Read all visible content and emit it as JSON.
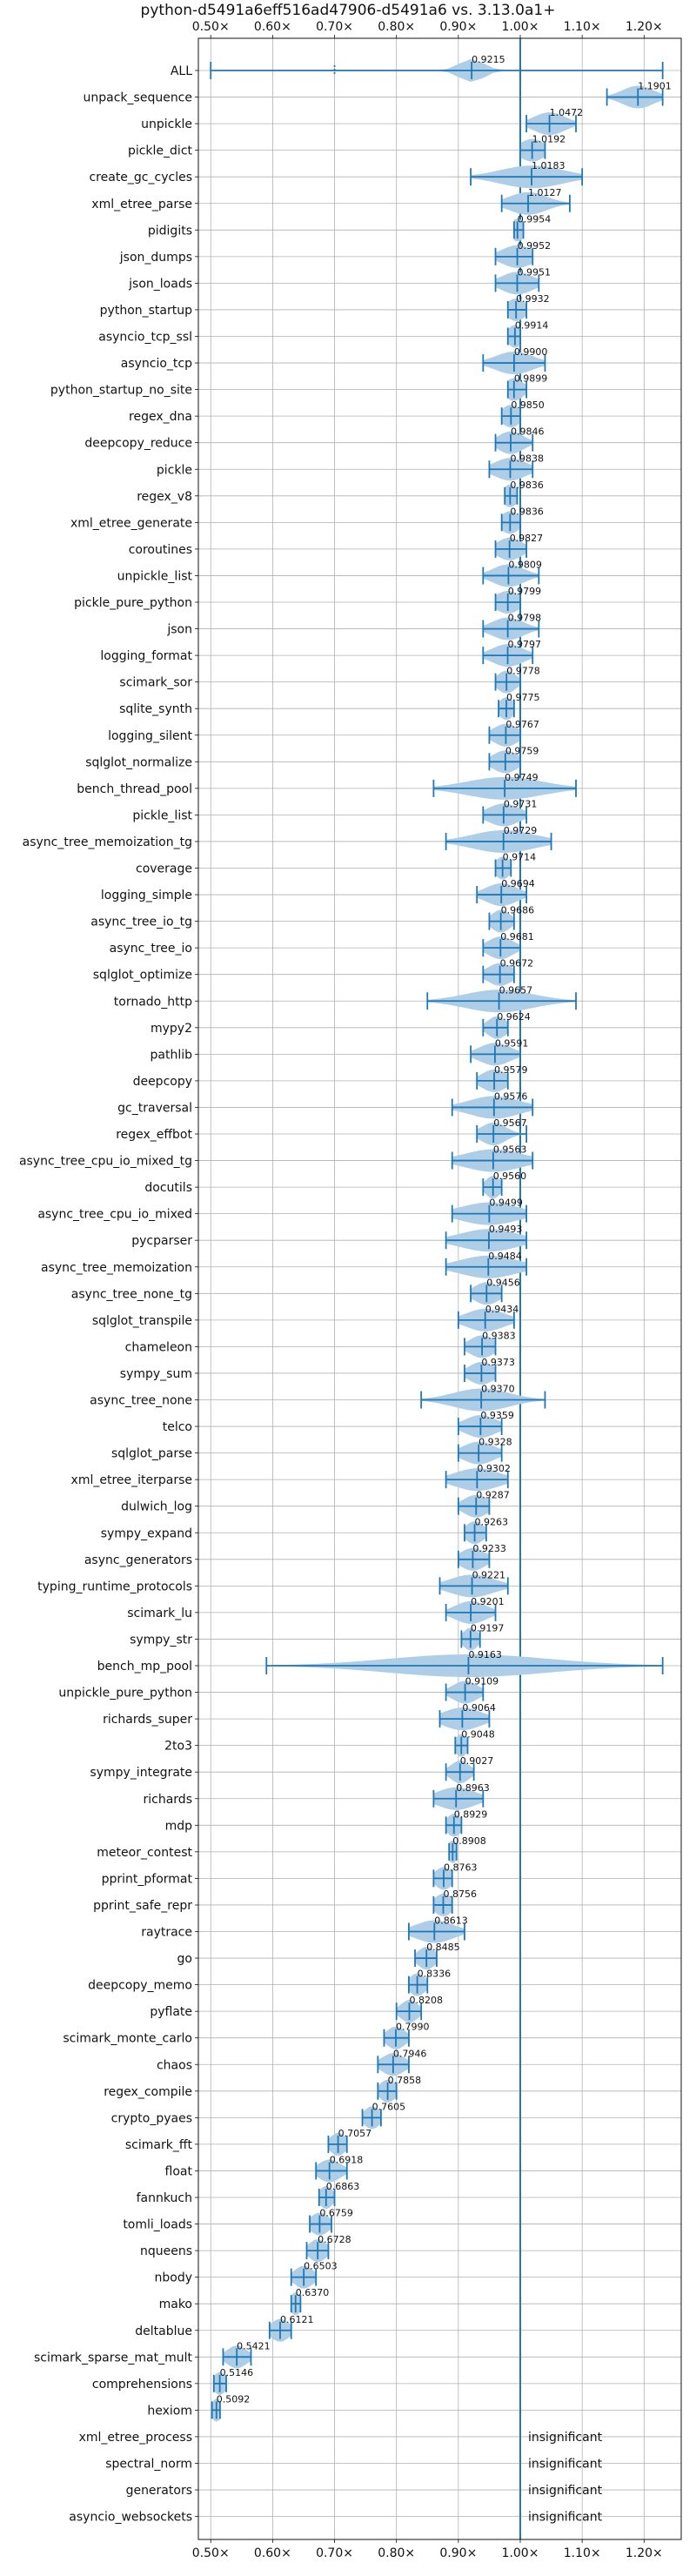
{
  "chart_data": {
    "type": "violin",
    "title": "python-d5491a6eff516ad47906-d5491a6 vs. 3.13.0a1+",
    "xlim": [
      0.48,
      1.26
    ],
    "xticks": [
      0.5,
      0.6,
      0.7,
      0.8,
      0.9,
      1.0,
      1.1,
      1.2
    ],
    "xtick_labels": [
      "0.50×",
      "0.60×",
      "0.70×",
      "0.80×",
      "0.90×",
      "1.00×",
      "1.10×",
      "1.20×"
    ],
    "reference_line": 1.0,
    "grid": true,
    "color": "#1f77b4",
    "violin_color": "#aecde7",
    "insignificant_text": "insignificant",
    "benchmarks": [
      {
        "name": "ALL",
        "value": 0.9215,
        "label": "0.9215",
        "lo": 0.5,
        "hi": 1.23,
        "spread": 0.02,
        "dots": true
      },
      {
        "name": "unpack_sequence",
        "value": 1.1901,
        "label": "1.1901",
        "lo": 1.14,
        "hi": 1.23,
        "spread": 0.025
      },
      {
        "name": "unpickle",
        "value": 1.0472,
        "label": "1.0472",
        "lo": 1.01,
        "hi": 1.09,
        "spread": 0.025
      },
      {
        "name": "pickle_dict",
        "value": 1.0192,
        "label": "1.0192",
        "lo": 1.0,
        "hi": 1.04,
        "spread": 0.02
      },
      {
        "name": "create_gc_cycles",
        "value": 1.0183,
        "label": "1.0183",
        "lo": 0.92,
        "hi": 1.1,
        "spread": 0.05
      },
      {
        "name": "xml_etree_parse",
        "value": 1.0127,
        "label": "1.0127",
        "lo": 0.97,
        "hi": 1.08,
        "spread": 0.03
      },
      {
        "name": "pidigits",
        "value": 0.9954,
        "label": "0.9954",
        "lo": 0.99,
        "hi": 1.005,
        "spread": 0.012
      },
      {
        "name": "json_dumps",
        "value": 0.9952,
        "label": "0.9952",
        "lo": 0.96,
        "hi": 1.02,
        "spread": 0.025
      },
      {
        "name": "json_loads",
        "value": 0.9951,
        "label": "0.9951",
        "lo": 0.96,
        "hi": 1.03,
        "spread": 0.025
      },
      {
        "name": "python_startup",
        "value": 0.9932,
        "label": "0.9932",
        "lo": 0.98,
        "hi": 1.01,
        "spread": 0.015
      },
      {
        "name": "asyncio_tcp_ssl",
        "value": 0.9914,
        "label": "0.9914",
        "lo": 0.98,
        "hi": 1.0,
        "spread": 0.012
      },
      {
        "name": "asyncio_tcp",
        "value": 0.99,
        "label": "0.9900",
        "lo": 0.94,
        "hi": 1.04,
        "spread": 0.03
      },
      {
        "name": "python_startup_no_site",
        "value": 0.9899,
        "label": "0.9899",
        "lo": 0.98,
        "hi": 1.01,
        "spread": 0.015
      },
      {
        "name": "regex_dna",
        "value": 0.985,
        "label": "0.9850",
        "lo": 0.97,
        "hi": 1.0,
        "spread": 0.015
      },
      {
        "name": "deepcopy_reduce",
        "value": 0.9846,
        "label": "0.9846",
        "lo": 0.96,
        "hi": 1.02,
        "spread": 0.02
      },
      {
        "name": "pickle",
        "value": 0.9838,
        "label": "0.9838",
        "lo": 0.95,
        "hi": 1.02,
        "spread": 0.025
      },
      {
        "name": "regex_v8",
        "value": 0.9836,
        "label": "0.9836",
        "lo": 0.975,
        "hi": 0.995,
        "spread": 0.012
      },
      {
        "name": "xml_etree_generate",
        "value": 0.9836,
        "label": "0.9836",
        "lo": 0.97,
        "hi": 1.0,
        "spread": 0.015
      },
      {
        "name": "coroutines",
        "value": 0.9827,
        "label": "0.9827",
        "lo": 0.96,
        "hi": 1.01,
        "spread": 0.02
      },
      {
        "name": "unpickle_list",
        "value": 0.9809,
        "label": "0.9809",
        "lo": 0.94,
        "hi": 1.03,
        "spread": 0.025
      },
      {
        "name": "pickle_pure_python",
        "value": 0.9799,
        "label": "0.9799",
        "lo": 0.96,
        "hi": 1.0,
        "spread": 0.02
      },
      {
        "name": "json",
        "value": 0.9798,
        "label": "0.9798",
        "lo": 0.94,
        "hi": 1.03,
        "spread": 0.025
      },
      {
        "name": "logging_format",
        "value": 0.9797,
        "label": "0.9797",
        "lo": 0.94,
        "hi": 1.02,
        "spread": 0.025
      },
      {
        "name": "scimark_sor",
        "value": 0.9778,
        "label": "0.9778",
        "lo": 0.96,
        "hi": 1.0,
        "spread": 0.015
      },
      {
        "name": "sqlite_synth",
        "value": 0.9775,
        "label": "0.9775",
        "lo": 0.965,
        "hi": 0.99,
        "spread": 0.012
      },
      {
        "name": "logging_silent",
        "value": 0.9767,
        "label": "0.9767",
        "lo": 0.95,
        "hi": 1.0,
        "spread": 0.02
      },
      {
        "name": "sqlglot_normalize",
        "value": 0.9759,
        "label": "0.9759",
        "lo": 0.95,
        "hi": 1.0,
        "spread": 0.02
      },
      {
        "name": "bench_thread_pool",
        "value": 0.9749,
        "label": "0.9749",
        "lo": 0.86,
        "hi": 1.09,
        "spread": 0.06
      },
      {
        "name": "pickle_list",
        "value": 0.9731,
        "label": "0.9731",
        "lo": 0.94,
        "hi": 1.01,
        "spread": 0.025
      },
      {
        "name": "async_tree_memoization_tg",
        "value": 0.9729,
        "label": "0.9729",
        "lo": 0.88,
        "hi": 1.05,
        "spread": 0.05
      },
      {
        "name": "coverage",
        "value": 0.9714,
        "label": "0.9714",
        "lo": 0.96,
        "hi": 0.985,
        "spread": 0.012
      },
      {
        "name": "logging_simple",
        "value": 0.9694,
        "label": "0.9694",
        "lo": 0.93,
        "hi": 1.01,
        "spread": 0.025
      },
      {
        "name": "async_tree_io_tg",
        "value": 0.9686,
        "label": "0.9686",
        "lo": 0.95,
        "hi": 0.99,
        "spread": 0.015
      },
      {
        "name": "async_tree_io",
        "value": 0.9681,
        "label": "0.9681",
        "lo": 0.94,
        "hi": 1.0,
        "spread": 0.02
      },
      {
        "name": "sqlglot_optimize",
        "value": 0.9672,
        "label": "0.9672",
        "lo": 0.94,
        "hi": 0.99,
        "spread": 0.02
      },
      {
        "name": "tornado_http",
        "value": 0.9657,
        "label": "0.9657",
        "lo": 0.85,
        "hi": 1.09,
        "spread": 0.055
      },
      {
        "name": "mypy2",
        "value": 0.9624,
        "label": "0.9624",
        "lo": 0.94,
        "hi": 0.98,
        "spread": 0.015
      },
      {
        "name": "pathlib",
        "value": 0.9591,
        "label": "0.9591",
        "lo": 0.92,
        "hi": 1.0,
        "spread": 0.025
      },
      {
        "name": "deepcopy",
        "value": 0.9579,
        "label": "0.9579",
        "lo": 0.93,
        "hi": 0.98,
        "spread": 0.02
      },
      {
        "name": "gc_traversal",
        "value": 0.9576,
        "label": "0.9576",
        "lo": 0.89,
        "hi": 1.02,
        "spread": 0.04
      },
      {
        "name": "regex_effbot",
        "value": 0.9567,
        "label": "0.9567",
        "lo": 0.93,
        "hi": 1.01,
        "spread": 0.02
      },
      {
        "name": "async_tree_cpu_io_mixed_tg",
        "value": 0.9563,
        "label": "0.9563",
        "lo": 0.89,
        "hi": 1.02,
        "spread": 0.045
      },
      {
        "name": "docutils",
        "value": 0.956,
        "label": "0.9560",
        "lo": 0.94,
        "hi": 0.97,
        "spread": 0.012
      },
      {
        "name": "async_tree_cpu_io_mixed",
        "value": 0.9499,
        "label": "0.9499",
        "lo": 0.89,
        "hi": 1.01,
        "spread": 0.045
      },
      {
        "name": "pycparser",
        "value": 0.9493,
        "label": "0.9493",
        "lo": 0.88,
        "hi": 1.01,
        "spread": 0.045
      },
      {
        "name": "async_tree_memoization",
        "value": 0.9484,
        "label": "0.9484",
        "lo": 0.88,
        "hi": 1.01,
        "spread": 0.045
      },
      {
        "name": "async_tree_none_tg",
        "value": 0.9456,
        "label": "0.9456",
        "lo": 0.92,
        "hi": 0.97,
        "spread": 0.02
      },
      {
        "name": "sqlglot_transpile",
        "value": 0.9434,
        "label": "0.9434",
        "lo": 0.9,
        "hi": 0.99,
        "spread": 0.03
      },
      {
        "name": "chameleon",
        "value": 0.9383,
        "label": "0.9383",
        "lo": 0.91,
        "hi": 0.96,
        "spread": 0.02
      },
      {
        "name": "sympy_sum",
        "value": 0.9373,
        "label": "0.9373",
        "lo": 0.91,
        "hi": 0.96,
        "spread": 0.02
      },
      {
        "name": "async_tree_none",
        "value": 0.937,
        "label": "0.9370",
        "lo": 0.84,
        "hi": 1.04,
        "spread": 0.045
      },
      {
        "name": "telco",
        "value": 0.9359,
        "label": "0.9359",
        "lo": 0.9,
        "hi": 0.97,
        "spread": 0.025
      },
      {
        "name": "sqlglot_parse",
        "value": 0.9328,
        "label": "0.9328",
        "lo": 0.9,
        "hi": 0.97,
        "spread": 0.025
      },
      {
        "name": "xml_etree_iterparse",
        "value": 0.9302,
        "label": "0.9302",
        "lo": 0.88,
        "hi": 0.98,
        "spread": 0.035
      },
      {
        "name": "dulwich_log",
        "value": 0.9287,
        "label": "0.9287",
        "lo": 0.9,
        "hi": 0.95,
        "spread": 0.02
      },
      {
        "name": "sympy_expand",
        "value": 0.9263,
        "label": "0.9263",
        "lo": 0.91,
        "hi": 0.945,
        "spread": 0.015
      },
      {
        "name": "async_generators",
        "value": 0.9233,
        "label": "0.9233",
        "lo": 0.9,
        "hi": 0.95,
        "spread": 0.02
      },
      {
        "name": "typing_runtime_protocols",
        "value": 0.9221,
        "label": "0.9221",
        "lo": 0.87,
        "hi": 0.98,
        "spread": 0.035
      },
      {
        "name": "scimark_lu",
        "value": 0.9201,
        "label": "0.9201",
        "lo": 0.88,
        "hi": 0.96,
        "spread": 0.025
      },
      {
        "name": "sympy_str",
        "value": 0.9197,
        "label": "0.9197",
        "lo": 0.905,
        "hi": 0.935,
        "spread": 0.012
      },
      {
        "name": "bench_mp_pool",
        "value": 0.9163,
        "label": "0.9163",
        "lo": 0.59,
        "hi": 1.23,
        "spread": 0.13
      },
      {
        "name": "unpickle_pure_python",
        "value": 0.9109,
        "label": "0.9109",
        "lo": 0.88,
        "hi": 0.94,
        "spread": 0.02
      },
      {
        "name": "richards_super",
        "value": 0.9064,
        "label": "0.9064",
        "lo": 0.87,
        "hi": 0.95,
        "spread": 0.03
      },
      {
        "name": "2to3",
        "value": 0.9048,
        "label": "0.9048",
        "lo": 0.895,
        "hi": 0.915,
        "spread": 0.01
      },
      {
        "name": "sympy_integrate",
        "value": 0.9027,
        "label": "0.9027",
        "lo": 0.88,
        "hi": 0.925,
        "spread": 0.015
      },
      {
        "name": "richards",
        "value": 0.8963,
        "label": "0.8963",
        "lo": 0.86,
        "hi": 0.94,
        "spread": 0.03
      },
      {
        "name": "mdp",
        "value": 0.8929,
        "label": "0.8929",
        "lo": 0.88,
        "hi": 0.905,
        "spread": 0.012
      },
      {
        "name": "meteor_contest",
        "value": 0.8908,
        "label": "0.8908",
        "lo": 0.885,
        "hi": 0.897,
        "spread": 0.008
      },
      {
        "name": "pprint_pformat",
        "value": 0.8763,
        "label": "0.8763",
        "lo": 0.86,
        "hi": 0.89,
        "spread": 0.014
      },
      {
        "name": "pprint_safe_repr",
        "value": 0.8756,
        "label": "0.8756",
        "lo": 0.86,
        "hi": 0.89,
        "spread": 0.014
      },
      {
        "name": "raytrace",
        "value": 0.8613,
        "label": "0.8613",
        "lo": 0.82,
        "hi": 0.91,
        "spread": 0.03
      },
      {
        "name": "go",
        "value": 0.8485,
        "label": "0.8485",
        "lo": 0.83,
        "hi": 0.865,
        "spread": 0.014
      },
      {
        "name": "deepcopy_memo",
        "value": 0.8336,
        "label": "0.8336",
        "lo": 0.82,
        "hi": 0.85,
        "spread": 0.013
      },
      {
        "name": "pyflate",
        "value": 0.8208,
        "label": "0.8208",
        "lo": 0.8,
        "hi": 0.84,
        "spread": 0.014
      },
      {
        "name": "scimark_monte_carlo",
        "value": 0.799,
        "label": "0.7990",
        "lo": 0.78,
        "hi": 0.82,
        "spread": 0.015
      },
      {
        "name": "chaos",
        "value": 0.7946,
        "label": "0.7946",
        "lo": 0.77,
        "hi": 0.82,
        "spread": 0.018
      },
      {
        "name": "regex_compile",
        "value": 0.7858,
        "label": "0.7858",
        "lo": 0.77,
        "hi": 0.8,
        "spread": 0.013
      },
      {
        "name": "crypto_pyaes",
        "value": 0.7605,
        "label": "0.7605",
        "lo": 0.745,
        "hi": 0.775,
        "spread": 0.013
      },
      {
        "name": "scimark_fft",
        "value": 0.7057,
        "label": "0.7057",
        "lo": 0.69,
        "hi": 0.72,
        "spread": 0.013
      },
      {
        "name": "float",
        "value": 0.6918,
        "label": "0.6918",
        "lo": 0.67,
        "hi": 0.72,
        "spread": 0.018
      },
      {
        "name": "fannkuch",
        "value": 0.6863,
        "label": "0.6863",
        "lo": 0.675,
        "hi": 0.7,
        "spread": 0.011
      },
      {
        "name": "tomli_loads",
        "value": 0.6759,
        "label": "0.6759",
        "lo": 0.66,
        "hi": 0.695,
        "spread": 0.015
      },
      {
        "name": "nqueens",
        "value": 0.6728,
        "label": "0.6728",
        "lo": 0.655,
        "hi": 0.69,
        "spread": 0.014
      },
      {
        "name": "nbody",
        "value": 0.6503,
        "label": "0.6503",
        "lo": 0.63,
        "hi": 0.67,
        "spread": 0.015
      },
      {
        "name": "mako",
        "value": 0.637,
        "label": "0.6370",
        "lo": 0.63,
        "hi": 0.645,
        "spread": 0.009
      },
      {
        "name": "deltablue",
        "value": 0.6121,
        "label": "0.6121",
        "lo": 0.595,
        "hi": 0.63,
        "spread": 0.015
      },
      {
        "name": "scimark_sparse_mat_mult",
        "value": 0.5421,
        "label": "0.5421",
        "lo": 0.52,
        "hi": 0.565,
        "spread": 0.016
      },
      {
        "name": "comprehensions",
        "value": 0.5146,
        "label": "0.5146",
        "lo": 0.505,
        "hi": 0.525,
        "spread": 0.01
      },
      {
        "name": "hexiom",
        "value": 0.5092,
        "label": "0.5092",
        "lo": 0.502,
        "hi": 0.515,
        "spread": 0.008
      },
      {
        "name": "xml_etree_process",
        "value": null,
        "label": ""
      },
      {
        "name": "spectral_norm",
        "value": null,
        "label": ""
      },
      {
        "name": "generators",
        "value": null,
        "label": ""
      },
      {
        "name": "asyncio_websockets",
        "value": null,
        "label": ""
      }
    ]
  }
}
